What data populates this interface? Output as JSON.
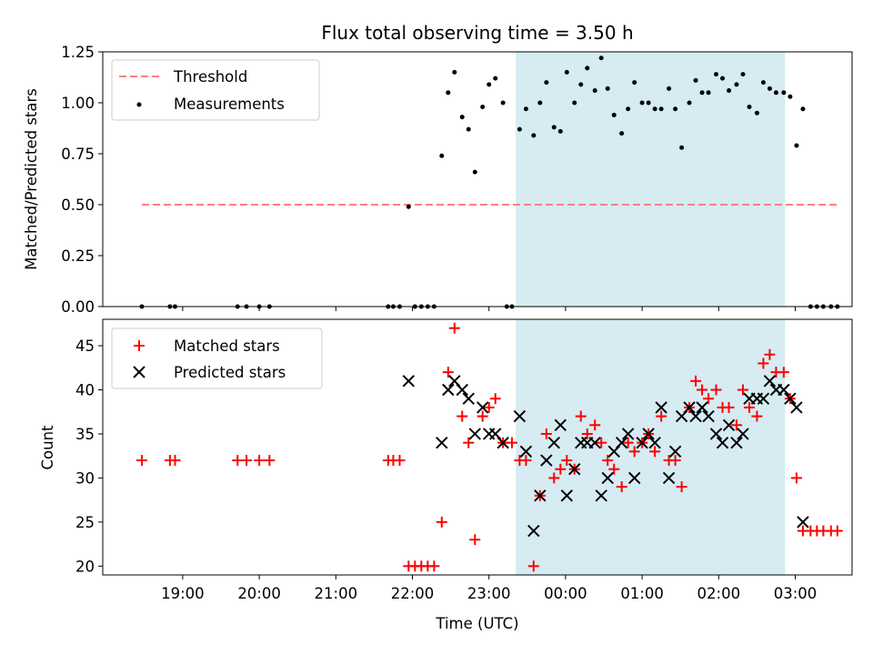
{
  "title": "Flux total observing time = 3.50 h",
  "colors": {
    "threshold": "#ff7f7f",
    "measurement": "#000000",
    "matched": "#ff0000",
    "predicted": "#000000",
    "band": "#add8e6"
  },
  "chart_data": [
    {
      "type": "scatter",
      "panel": "top",
      "ylabel": "Matched/Predicted stars",
      "ylim": [
        0.0,
        1.25
      ],
      "yticks": [
        0.0,
        0.25,
        0.5,
        0.75,
        1.0,
        1.25
      ],
      "ytick_labels": [
        "0.00",
        "0.25",
        "0.50",
        "0.75",
        "1.00",
        "1.25"
      ],
      "legend": [
        "Threshold",
        "Measurements"
      ],
      "legend_position": "upper-left",
      "shaded_range": [
        "23:21",
        "02:52"
      ],
      "threshold": {
        "name": "Threshold",
        "x": [
          "18:28",
          "03:33"
        ],
        "y": 0.5
      },
      "measurements": {
        "name": "Measurements",
        "points": [
          [
            "18:28",
            0.0
          ],
          [
            "18:50",
            0.0
          ],
          [
            "18:54",
            0.0
          ],
          [
            "19:43",
            0.0
          ],
          [
            "19:50",
            0.0
          ],
          [
            "20:00",
            0.0
          ],
          [
            "20:08",
            0.0
          ],
          [
            "21:41",
            0.0
          ],
          [
            "21:45",
            0.0
          ],
          [
            "21:50",
            0.0
          ],
          [
            "21:57",
            0.49
          ],
          [
            "22:02",
            0.0
          ],
          [
            "22:07",
            0.0
          ],
          [
            "22:12",
            0.0
          ],
          [
            "22:17",
            0.0
          ],
          [
            "22:23",
            0.74
          ],
          [
            "22:28",
            1.05
          ],
          [
            "22:33",
            1.15
          ],
          [
            "22:39",
            0.93
          ],
          [
            "22:44",
            0.87
          ],
          [
            "22:49",
            0.66
          ],
          [
            "22:55",
            0.98
          ],
          [
            "23:00",
            1.09
          ],
          [
            "23:05",
            1.12
          ],
          [
            "23:11",
            1.0
          ],
          [
            "23:14",
            0.0
          ],
          [
            "23:18",
            0.0
          ],
          [
            "23:24",
            0.87
          ],
          [
            "23:29",
            0.97
          ],
          [
            "23:35",
            0.84
          ],
          [
            "23:40",
            1.0
          ],
          [
            "23:45",
            1.1
          ],
          [
            "23:51",
            0.88
          ],
          [
            "23:56",
            0.86
          ],
          [
            "00:01",
            1.15
          ],
          [
            "00:07",
            1.0
          ],
          [
            "00:12",
            1.09
          ],
          [
            "00:17",
            1.17
          ],
          [
            "00:23",
            1.06
          ],
          [
            "00:28",
            1.22
          ],
          [
            "00:33",
            1.07
          ],
          [
            "00:38",
            0.94
          ],
          [
            "00:44",
            0.85
          ],
          [
            "00:49",
            0.97
          ],
          [
            "00:54",
            1.1
          ],
          [
            "01:00",
            1.0
          ],
          [
            "01:05",
            1.0
          ],
          [
            "01:10",
            0.97
          ],
          [
            "01:15",
            0.97
          ],
          [
            "01:21",
            1.07
          ],
          [
            "01:26",
            0.97
          ],
          [
            "01:31",
            0.78
          ],
          [
            "01:37",
            1.0
          ],
          [
            "01:42",
            1.11
          ],
          [
            "01:47",
            1.05
          ],
          [
            "01:52",
            1.05
          ],
          [
            "01:58",
            1.14
          ],
          [
            "02:03",
            1.12
          ],
          [
            "02:08",
            1.06
          ],
          [
            "02:14",
            1.09
          ],
          [
            "02:19",
            1.14
          ],
          [
            "02:24",
            0.98
          ],
          [
            "02:30",
            0.95
          ],
          [
            "02:35",
            1.1
          ],
          [
            "02:40",
            1.07
          ],
          [
            "02:45",
            1.05
          ],
          [
            "02:51",
            1.05
          ],
          [
            "02:56",
            1.03
          ],
          [
            "03:01",
            0.79
          ],
          [
            "03:06",
            0.97
          ],
          [
            "03:12",
            0.0
          ],
          [
            "03:17",
            0.0
          ],
          [
            "03:22",
            0.0
          ],
          [
            "03:28",
            0.0
          ],
          [
            "03:33",
            0.0
          ]
        ]
      }
    },
    {
      "type": "scatter",
      "panel": "bottom",
      "xlabel": "Time (UTC)",
      "ylabel": "Count",
      "ylim": [
        19,
        48
      ],
      "yticks": [
        20,
        25,
        30,
        35,
        40,
        45
      ],
      "ytick_labels": [
        "20",
        "25",
        "30",
        "35",
        "40",
        "45"
      ],
      "xtick_labels": [
        "19:00",
        "20:00",
        "21:00",
        "22:00",
        "23:00",
        "00:00",
        "01:00",
        "02:00",
        "03:00"
      ],
      "legend": [
        "Matched stars",
        "Predicted stars"
      ],
      "legend_position": "upper-left",
      "shaded_range": [
        "23:21",
        "02:52"
      ],
      "series": [
        {
          "name": "Matched stars",
          "marker": "+",
          "points": [
            [
              "18:28",
              32
            ],
            [
              "18:50",
              32
            ],
            [
              "18:54",
              32
            ],
            [
              "19:43",
              32
            ],
            [
              "19:50",
              32
            ],
            [
              "20:00",
              32
            ],
            [
              "20:08",
              32
            ],
            [
              "21:41",
              32
            ],
            [
              "21:45",
              32
            ],
            [
              "21:50",
              32
            ],
            [
              "21:57",
              20
            ],
            [
              "22:02",
              20
            ],
            [
              "22:07",
              20
            ],
            [
              "22:12",
              20
            ],
            [
              "22:17",
              20
            ],
            [
              "22:23",
              25
            ],
            [
              "22:28",
              42
            ],
            [
              "22:33",
              47
            ],
            [
              "22:39",
              37
            ],
            [
              "22:44",
              34
            ],
            [
              "22:49",
              23
            ],
            [
              "22:55",
              37
            ],
            [
              "23:00",
              38
            ],
            [
              "23:05",
              39
            ],
            [
              "23:11",
              34
            ],
            [
              "23:18",
              34
            ],
            [
              "23:24",
              32
            ],
            [
              "23:29",
              32
            ],
            [
              "23:35",
              20
            ],
            [
              "23:40",
              28
            ],
            [
              "23:45",
              35
            ],
            [
              "23:51",
              30
            ],
            [
              "23:56",
              31
            ],
            [
              "00:01",
              32
            ],
            [
              "00:07",
              31
            ],
            [
              "00:12",
              37
            ],
            [
              "00:17",
              35
            ],
            [
              "00:23",
              36
            ],
            [
              "00:28",
              34
            ],
            [
              "00:33",
              32
            ],
            [
              "00:38",
              31
            ],
            [
              "00:44",
              29
            ],
            [
              "00:49",
              34
            ],
            [
              "00:54",
              33
            ],
            [
              "01:00",
              34
            ],
            [
              "01:05",
              35
            ],
            [
              "01:10",
              33
            ],
            [
              "01:15",
              37
            ],
            [
              "01:21",
              32
            ],
            [
              "01:26",
              32
            ],
            [
              "01:31",
              29
            ],
            [
              "01:37",
              38
            ],
            [
              "01:42",
              41
            ],
            [
              "01:47",
              40
            ],
            [
              "01:52",
              39
            ],
            [
              "01:58",
              40
            ],
            [
              "02:03",
              38
            ],
            [
              "02:08",
              38
            ],
            [
              "02:14",
              36
            ],
            [
              "02:19",
              40
            ],
            [
              "02:24",
              38
            ],
            [
              "02:30",
              37
            ],
            [
              "02:35",
              43
            ],
            [
              "02:40",
              44
            ],
            [
              "02:45",
              42
            ],
            [
              "02:51",
              42
            ],
            [
              "02:56",
              39
            ],
            [
              "03:01",
              30
            ],
            [
              "03:06",
              24
            ],
            [
              "03:12",
              24
            ],
            [
              "03:17",
              24
            ],
            [
              "03:22",
              24
            ],
            [
              "03:28",
              24
            ],
            [
              "03:33",
              24
            ]
          ]
        },
        {
          "name": "Predicted stars",
          "marker": "x",
          "points": [
            [
              "21:57",
              41
            ],
            [
              "22:23",
              34
            ],
            [
              "22:28",
              40
            ],
            [
              "22:33",
              41
            ],
            [
              "22:39",
              40
            ],
            [
              "22:44",
              39
            ],
            [
              "22:49",
              35
            ],
            [
              "22:55",
              38
            ],
            [
              "23:00",
              35
            ],
            [
              "23:05",
              35
            ],
            [
              "23:11",
              34
            ],
            [
              "23:24",
              37
            ],
            [
              "23:29",
              33
            ],
            [
              "23:35",
              24
            ],
            [
              "23:40",
              28
            ],
            [
              "23:45",
              32
            ],
            [
              "23:51",
              34
            ],
            [
              "23:56",
              36
            ],
            [
              "00:01",
              28
            ],
            [
              "00:07",
              31
            ],
            [
              "00:12",
              34
            ],
            [
              "00:17",
              34
            ],
            [
              "00:23",
              34
            ],
            [
              "00:28",
              28
            ],
            [
              "00:33",
              30
            ],
            [
              "00:38",
              33
            ],
            [
              "00:44",
              34
            ],
            [
              "00:49",
              35
            ],
            [
              "00:54",
              30
            ],
            [
              "01:00",
              34
            ],
            [
              "01:05",
              35
            ],
            [
              "01:10",
              34
            ],
            [
              "01:15",
              38
            ],
            [
              "01:21",
              30
            ],
            [
              "01:26",
              33
            ],
            [
              "01:31",
              37
            ],
            [
              "01:37",
              38
            ],
            [
              "01:42",
              37
            ],
            [
              "01:47",
              38
            ],
            [
              "01:52",
              37
            ],
            [
              "01:58",
              35
            ],
            [
              "02:03",
              34
            ],
            [
              "02:08",
              36
            ],
            [
              "02:14",
              34
            ],
            [
              "02:19",
              35
            ],
            [
              "02:24",
              39
            ],
            [
              "02:30",
              39
            ],
            [
              "02:35",
              39
            ],
            [
              "02:40",
              41
            ],
            [
              "02:45",
              40
            ],
            [
              "02:51",
              40
            ],
            [
              "02:56",
              39
            ],
            [
              "03:01",
              38
            ],
            [
              "03:06",
              25
            ]
          ]
        }
      ]
    }
  ]
}
